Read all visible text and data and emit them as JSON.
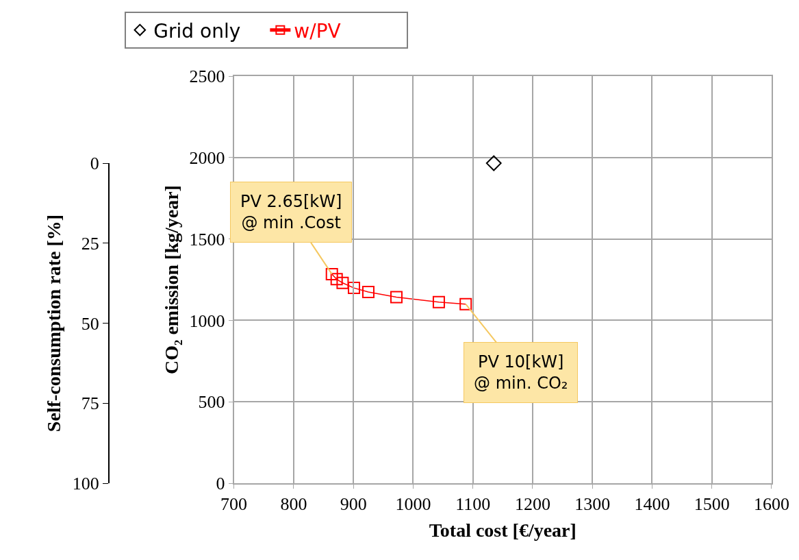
{
  "chart_data": {
    "type": "line",
    "xlabel": "Total cost [€/year]",
    "ylabel": "CO₂ emission [kg/year]",
    "y2label": "Self-consumption rate [%]",
    "xlim": [
      700,
      1600
    ],
    "xticks": [
      700,
      800,
      900,
      1000,
      1100,
      1200,
      1300,
      1400,
      1500,
      1600
    ],
    "ylim": [
      0,
      2500
    ],
    "yticks": [
      0,
      500,
      1000,
      1500,
      2000,
      2500
    ],
    "y2lim": [
      100,
      0
    ],
    "y2ticks": [
      0,
      25,
      50,
      75,
      100
    ],
    "grid": true,
    "legend": "top",
    "series": [
      {
        "name": "Grid only",
        "type": "scatter",
        "marker": "diamond",
        "color": "#000000",
        "x": [
          1135
        ],
        "values": [
          1965
        ]
      },
      {
        "name": "w/PV",
        "marker": "square",
        "line_style": "solid",
        "color": "#ff0000",
        "x": [
          864,
          872,
          882,
          901,
          925,
          972,
          1043,
          1088
        ],
        "values": [
          1284,
          1253,
          1230,
          1199,
          1174,
          1143,
          1112,
          1100
        ]
      }
    ],
    "annotations": [
      {
        "text": "PV 2.65[kW]\n@ min .Cost",
        "x": 864,
        "y": 1284
      },
      {
        "text": "PV 10[kW]\n@ min. CO₂",
        "x": 1088,
        "y": 1100
      }
    ]
  }
}
